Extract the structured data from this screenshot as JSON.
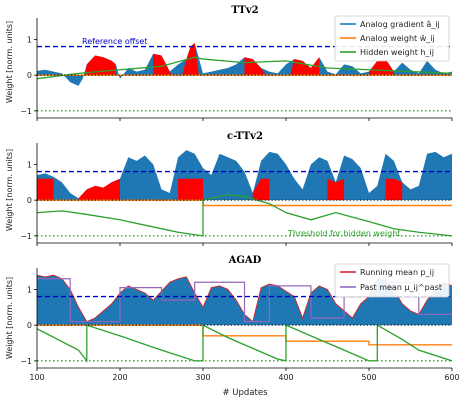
{
  "figure": {
    "xlabel": "# Updates",
    "ylabel": "Weight [norm. units]"
  },
  "colors": {
    "gradient": "#1f77b4",
    "analog_weight": "#ff7f0e",
    "hidden": "#2ca02c",
    "fill": "#ff0000",
    "reference": "#0000cc",
    "threshold": "#2ca02c",
    "running_mean": "#d62728",
    "past_mean": "#9467bd"
  },
  "chart_data": [
    {
      "type": "line",
      "title": "TTv2",
      "xlim": [
        100,
        600
      ],
      "ylim": [
        -1.2,
        1.6
      ],
      "xticks": [
        100,
        200,
        300,
        400,
        500,
        600
      ],
      "yticks": [
        -1,
        0,
        1
      ],
      "annotations": [
        {
          "text": "Reference offset",
          "x": 150,
          "y": 0.92
        }
      ],
      "legend": {
        "placement": "top-right",
        "entries": [
          "Analog gradient â_ij",
          "Analog weight w̆_ij",
          "Hidden weight h_ij"
        ]
      },
      "reference_offset": 0.8,
      "threshold": -1.0,
      "series": [
        {
          "name": "Analog gradient â_ij",
          "x": [
            100,
            110,
            120,
            130,
            140,
            150,
            155,
            160,
            170,
            180,
            190,
            195,
            200,
            210,
            220,
            230,
            240,
            250,
            260,
            270,
            280,
            285,
            290,
            300,
            310,
            320,
            330,
            340,
            350,
            360,
            370,
            380,
            390,
            400,
            410,
            420,
            430,
            440,
            450,
            460,
            470,
            480,
            490,
            500,
            510,
            520,
            530,
            540,
            550,
            560,
            570,
            580,
            590,
            600
          ],
          "values": [
            0.12,
            0.15,
            0.1,
            0.05,
            -0.2,
            -0.3,
            -0.1,
            0.3,
            0.55,
            0.5,
            0.4,
            0.3,
            -0.1,
            0.2,
            0.1,
            0.15,
            0.6,
            0.55,
            0.1,
            0.3,
            0.45,
            0.8,
            0.9,
            0.05,
            0.1,
            0.15,
            0.2,
            0.3,
            0.5,
            0.45,
            0.2,
            0.1,
            0.05,
            0.3,
            0.45,
            0.4,
            0.2,
            0.5,
            0.1,
            0.02,
            0.3,
            0.25,
            0.05,
            0.1,
            0.4,
            0.45,
            0.1,
            0.35,
            0.15,
            0.05,
            0.4,
            0.15,
            0.05,
            0.1
          ]
        },
        {
          "name": "Analog weight w̆_ij",
          "x": [
            100,
            600
          ],
          "values": [
            0.0,
            0.0
          ]
        },
        {
          "name": "Hidden weight h_ij",
          "x": [
            100,
            150,
            200,
            250,
            290,
            300,
            350,
            400,
            450,
            500,
            550,
            600
          ],
          "values": [
            -0.1,
            0.05,
            0.15,
            0.25,
            0.5,
            0.45,
            0.35,
            0.4,
            0.2,
            0.15,
            0.1,
            0.05
          ]
        }
      ]
    },
    {
      "type": "line",
      "title": "c-TTv2",
      "xlim": [
        100,
        600
      ],
      "ylim": [
        -1.2,
        1.6
      ],
      "xticks": [
        100,
        200,
        300,
        400,
        500,
        600
      ],
      "yticks": [
        -1,
        0,
        1
      ],
      "annotations": [
        {
          "text": "Threshold for hidden weight",
          "x": 400,
          "y": -1.25
        }
      ],
      "reference_offset": 0.8,
      "threshold": -1.0,
      "series": [
        {
          "name": "Analog gradient â_ij",
          "x": [
            100,
            110,
            120,
            130,
            140,
            150,
            160,
            170,
            180,
            190,
            200,
            210,
            220,
            230,
            240,
            250,
            260,
            270,
            280,
            290,
            300,
            310,
            320,
            330,
            340,
            350,
            360,
            370,
            380,
            390,
            400,
            410,
            420,
            430,
            440,
            450,
            460,
            470,
            480,
            490,
            500,
            510,
            520,
            530,
            540,
            550,
            560,
            570,
            580,
            590,
            600
          ],
          "values": [
            0.7,
            0.75,
            0.65,
            0.5,
            0.2,
            0.05,
            0.3,
            0.4,
            0.35,
            0.5,
            0.6,
            1.2,
            1.1,
            1.25,
            1.0,
            0.3,
            0.2,
            1.2,
            1.4,
            1.3,
            0.9,
            0.7,
            1.3,
            1.2,
            1.1,
            0.8,
            0.2,
            1.1,
            1.35,
            1.3,
            1.0,
            0.6,
            0.3,
            1.0,
            1.2,
            1.1,
            0.5,
            1.25,
            1.15,
            0.9,
            0.2,
            0.4,
            1.3,
            1.1,
            0.5,
            0.3,
            0.4,
            1.3,
            1.35,
            1.2,
            1.3
          ]
        },
        {
          "name": "Analog weight w̆_ij",
          "x": [
            100,
            300,
            300,
            600
          ],
          "values": [
            0.0,
            0.0,
            -0.15,
            -0.15
          ]
        },
        {
          "name": "Hidden weight h_ij",
          "x": [
            100,
            130,
            160,
            200,
            240,
            270,
            300,
            300,
            330,
            350,
            380,
            400,
            430,
            460,
            500,
            530,
            560,
            600
          ],
          "values": [
            -0.35,
            -0.3,
            -0.4,
            -0.55,
            -0.75,
            -0.9,
            -1.0,
            0.0,
            0.15,
            0.1,
            -0.1,
            -0.35,
            -0.55,
            -0.35,
            -0.6,
            -0.8,
            -0.9,
            -1.0
          ]
        }
      ]
    },
    {
      "type": "line",
      "title": "AGAD",
      "xlim": [
        100,
        600
      ],
      "ylim": [
        -1.2,
        1.6
      ],
      "xticks": [
        100,
        200,
        300,
        400,
        500,
        600
      ],
      "yticks": [
        -1,
        0,
        1
      ],
      "legend": {
        "placement": "top-right",
        "entries": [
          "Running mean p_ij",
          "Past mean μ_ij^past"
        ]
      },
      "reference_offset": 0.8,
      "threshold": -1.0,
      "series": [
        {
          "name": "Analog gradient â_ij",
          "x": [
            100,
            110,
            120,
            130,
            140,
            150,
            160,
            170,
            180,
            190,
            200,
            210,
            220,
            230,
            240,
            250,
            260,
            270,
            280,
            290,
            300,
            310,
            320,
            330,
            340,
            350,
            360,
            370,
            380,
            390,
            400,
            410,
            420,
            430,
            440,
            450,
            460,
            470,
            480,
            490,
            500,
            510,
            520,
            530,
            540,
            550,
            560,
            570,
            580,
            590,
            600
          ],
          "values": [
            1.4,
            1.35,
            1.4,
            1.3,
            1.0,
            0.5,
            0.1,
            0.2,
            0.4,
            0.6,
            0.9,
            1.1,
            1.0,
            0.9,
            0.7,
            0.95,
            1.2,
            1.3,
            1.35,
            0.9,
            0.5,
            1.05,
            1.1,
            1.0,
            0.7,
            0.3,
            0.1,
            1.05,
            1.15,
            1.1,
            0.95,
            0.8,
            0.2,
            0.9,
            1.1,
            1.0,
            0.6,
            0.4,
            0.2,
            0.6,
            0.8,
            1.3,
            1.25,
            1.0,
            0.6,
            0.4,
            0.3,
            0.7,
            1.0,
            1.2,
            1.1
          ]
        },
        {
          "name": "Running mean p_ij",
          "x": [
            100,
            110,
            120,
            130,
            140,
            150,
            160,
            170,
            180,
            190,
            200,
            210,
            220,
            230,
            240,
            250,
            260,
            270,
            280,
            290,
            300,
            310,
            320,
            330,
            340,
            350,
            360,
            370,
            380,
            390,
            400,
            410,
            420,
            430,
            440,
            450,
            460,
            470,
            480,
            490,
            500,
            510,
            520,
            530,
            540,
            550,
            560,
            570,
            580,
            590,
            600
          ],
          "values": [
            1.4,
            1.35,
            1.4,
            1.3,
            1.0,
            0.5,
            0.1,
            0.2,
            0.4,
            0.6,
            0.9,
            1.1,
            1.0,
            0.9,
            0.7,
            0.95,
            1.2,
            1.3,
            1.35,
            0.9,
            0.5,
            1.05,
            1.1,
            1.0,
            0.7,
            0.3,
            0.1,
            1.05,
            1.15,
            1.1,
            0.95,
            0.8,
            0.2,
            0.9,
            1.1,
            1.0,
            0.6,
            0.4,
            0.2,
            0.6,
            0.8,
            1.3,
            1.25,
            1.0,
            0.6,
            0.4,
            0.3,
            0.7,
            1.0,
            1.2,
            1.1
          ]
        },
        {
          "name": "Past mean μ_ij^past",
          "x": [
            100,
            140,
            140,
            200,
            200,
            250,
            250,
            290,
            290,
            350,
            350,
            380,
            380,
            430,
            430,
            470,
            470,
            510,
            510,
            560,
            560,
            600
          ],
          "values": [
            1.3,
            1.3,
            0.1,
            0.1,
            1.05,
            1.05,
            0.7,
            0.7,
            1.2,
            1.2,
            0.1,
            0.1,
            1.1,
            1.1,
            0.2,
            0.2,
            0.8,
            0.8,
            1.2,
            1.2,
            0.3,
            0.3
          ]
        },
        {
          "name": "Analog weight w̆_ij",
          "x": [
            100,
            300,
            300,
            400,
            400,
            500,
            500,
            600
          ],
          "values": [
            0.0,
            0.0,
            -0.3,
            -0.3,
            -0.45,
            -0.45,
            -0.55,
            -0.55
          ]
        },
        {
          "name": "Hidden weight h_ij",
          "x": [
            100,
            150,
            160,
            160,
            200,
            250,
            290,
            300,
            300,
            330,
            360,
            390,
            400,
            400,
            430,
            470,
            500,
            510,
            510,
            540,
            560,
            600
          ],
          "values": [
            -0.1,
            -0.7,
            -1.0,
            0.0,
            -0.3,
            -0.7,
            -1.0,
            -1.0,
            0.0,
            -0.35,
            -0.65,
            -0.95,
            -1.0,
            0.0,
            -0.3,
            -0.7,
            -1.0,
            -1.0,
            0.0,
            -0.4,
            -0.7,
            -1.0
          ]
        }
      ]
    }
  ]
}
